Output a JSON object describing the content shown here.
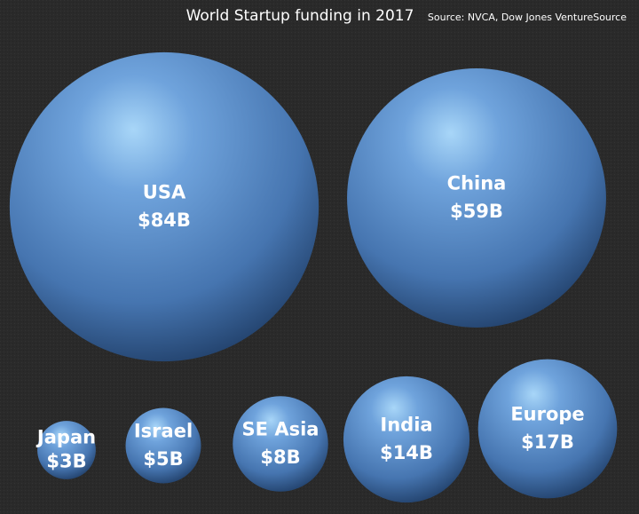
{
  "chart_data": {
    "type": "bubble",
    "title": "World Startup funding in 2017",
    "source": "Source: NVCA, Dow Jones VentureSource",
    "categories": [
      "USA",
      "China",
      "Japan",
      "Israel",
      "SE Asia",
      "India",
      "Europe"
    ],
    "values": [
      84,
      59,
      3,
      5,
      8,
      14,
      17
    ],
    "value_labels": [
      "$84B",
      "$59B",
      "$3B",
      "$5B",
      "$8B",
      "$14B",
      "$17B"
    ],
    "color": "#4a7bb8"
  }
}
